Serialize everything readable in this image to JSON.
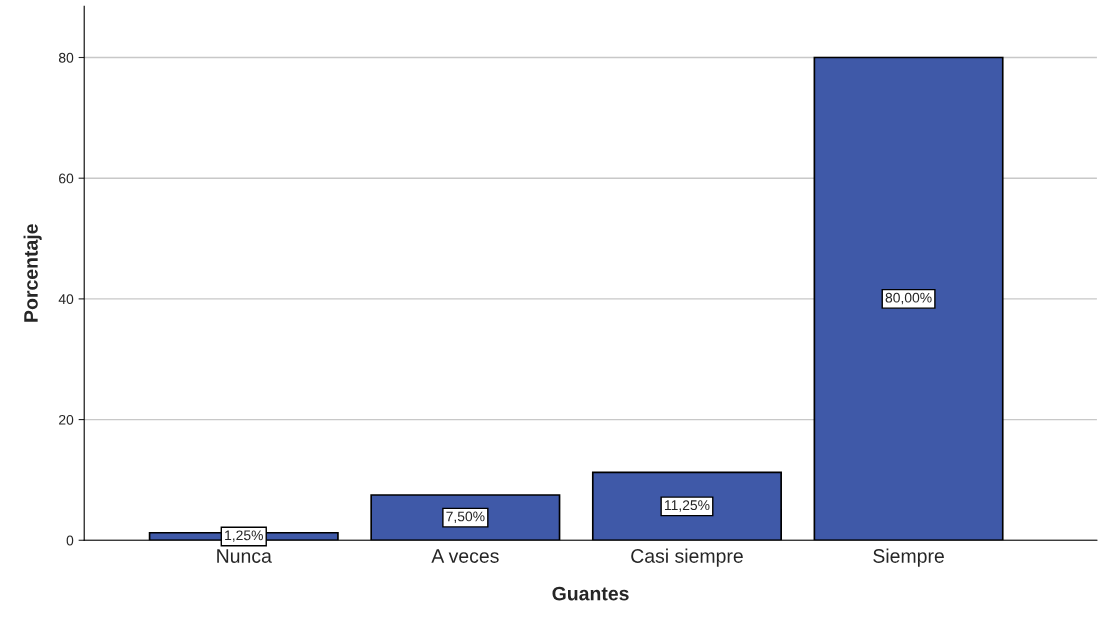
{
  "chart_data": {
    "type": "bar",
    "xlabel": "Guantes",
    "ylabel": "Porcentaje",
    "categories": [
      "Nunca",
      "A veces",
      "Casi siempre",
      "Siempre"
    ],
    "values": [
      1.25,
      7.5,
      11.25,
      80
    ],
    "value_labels": [
      "1,25%",
      "7,50%",
      "11,25%",
      "80,00%"
    ],
    "color": "#3f59a8",
    "ylim": [
      0,
      88.5
    ],
    "yticks": [
      0,
      20,
      40,
      60,
      80
    ],
    "grid": "y"
  }
}
